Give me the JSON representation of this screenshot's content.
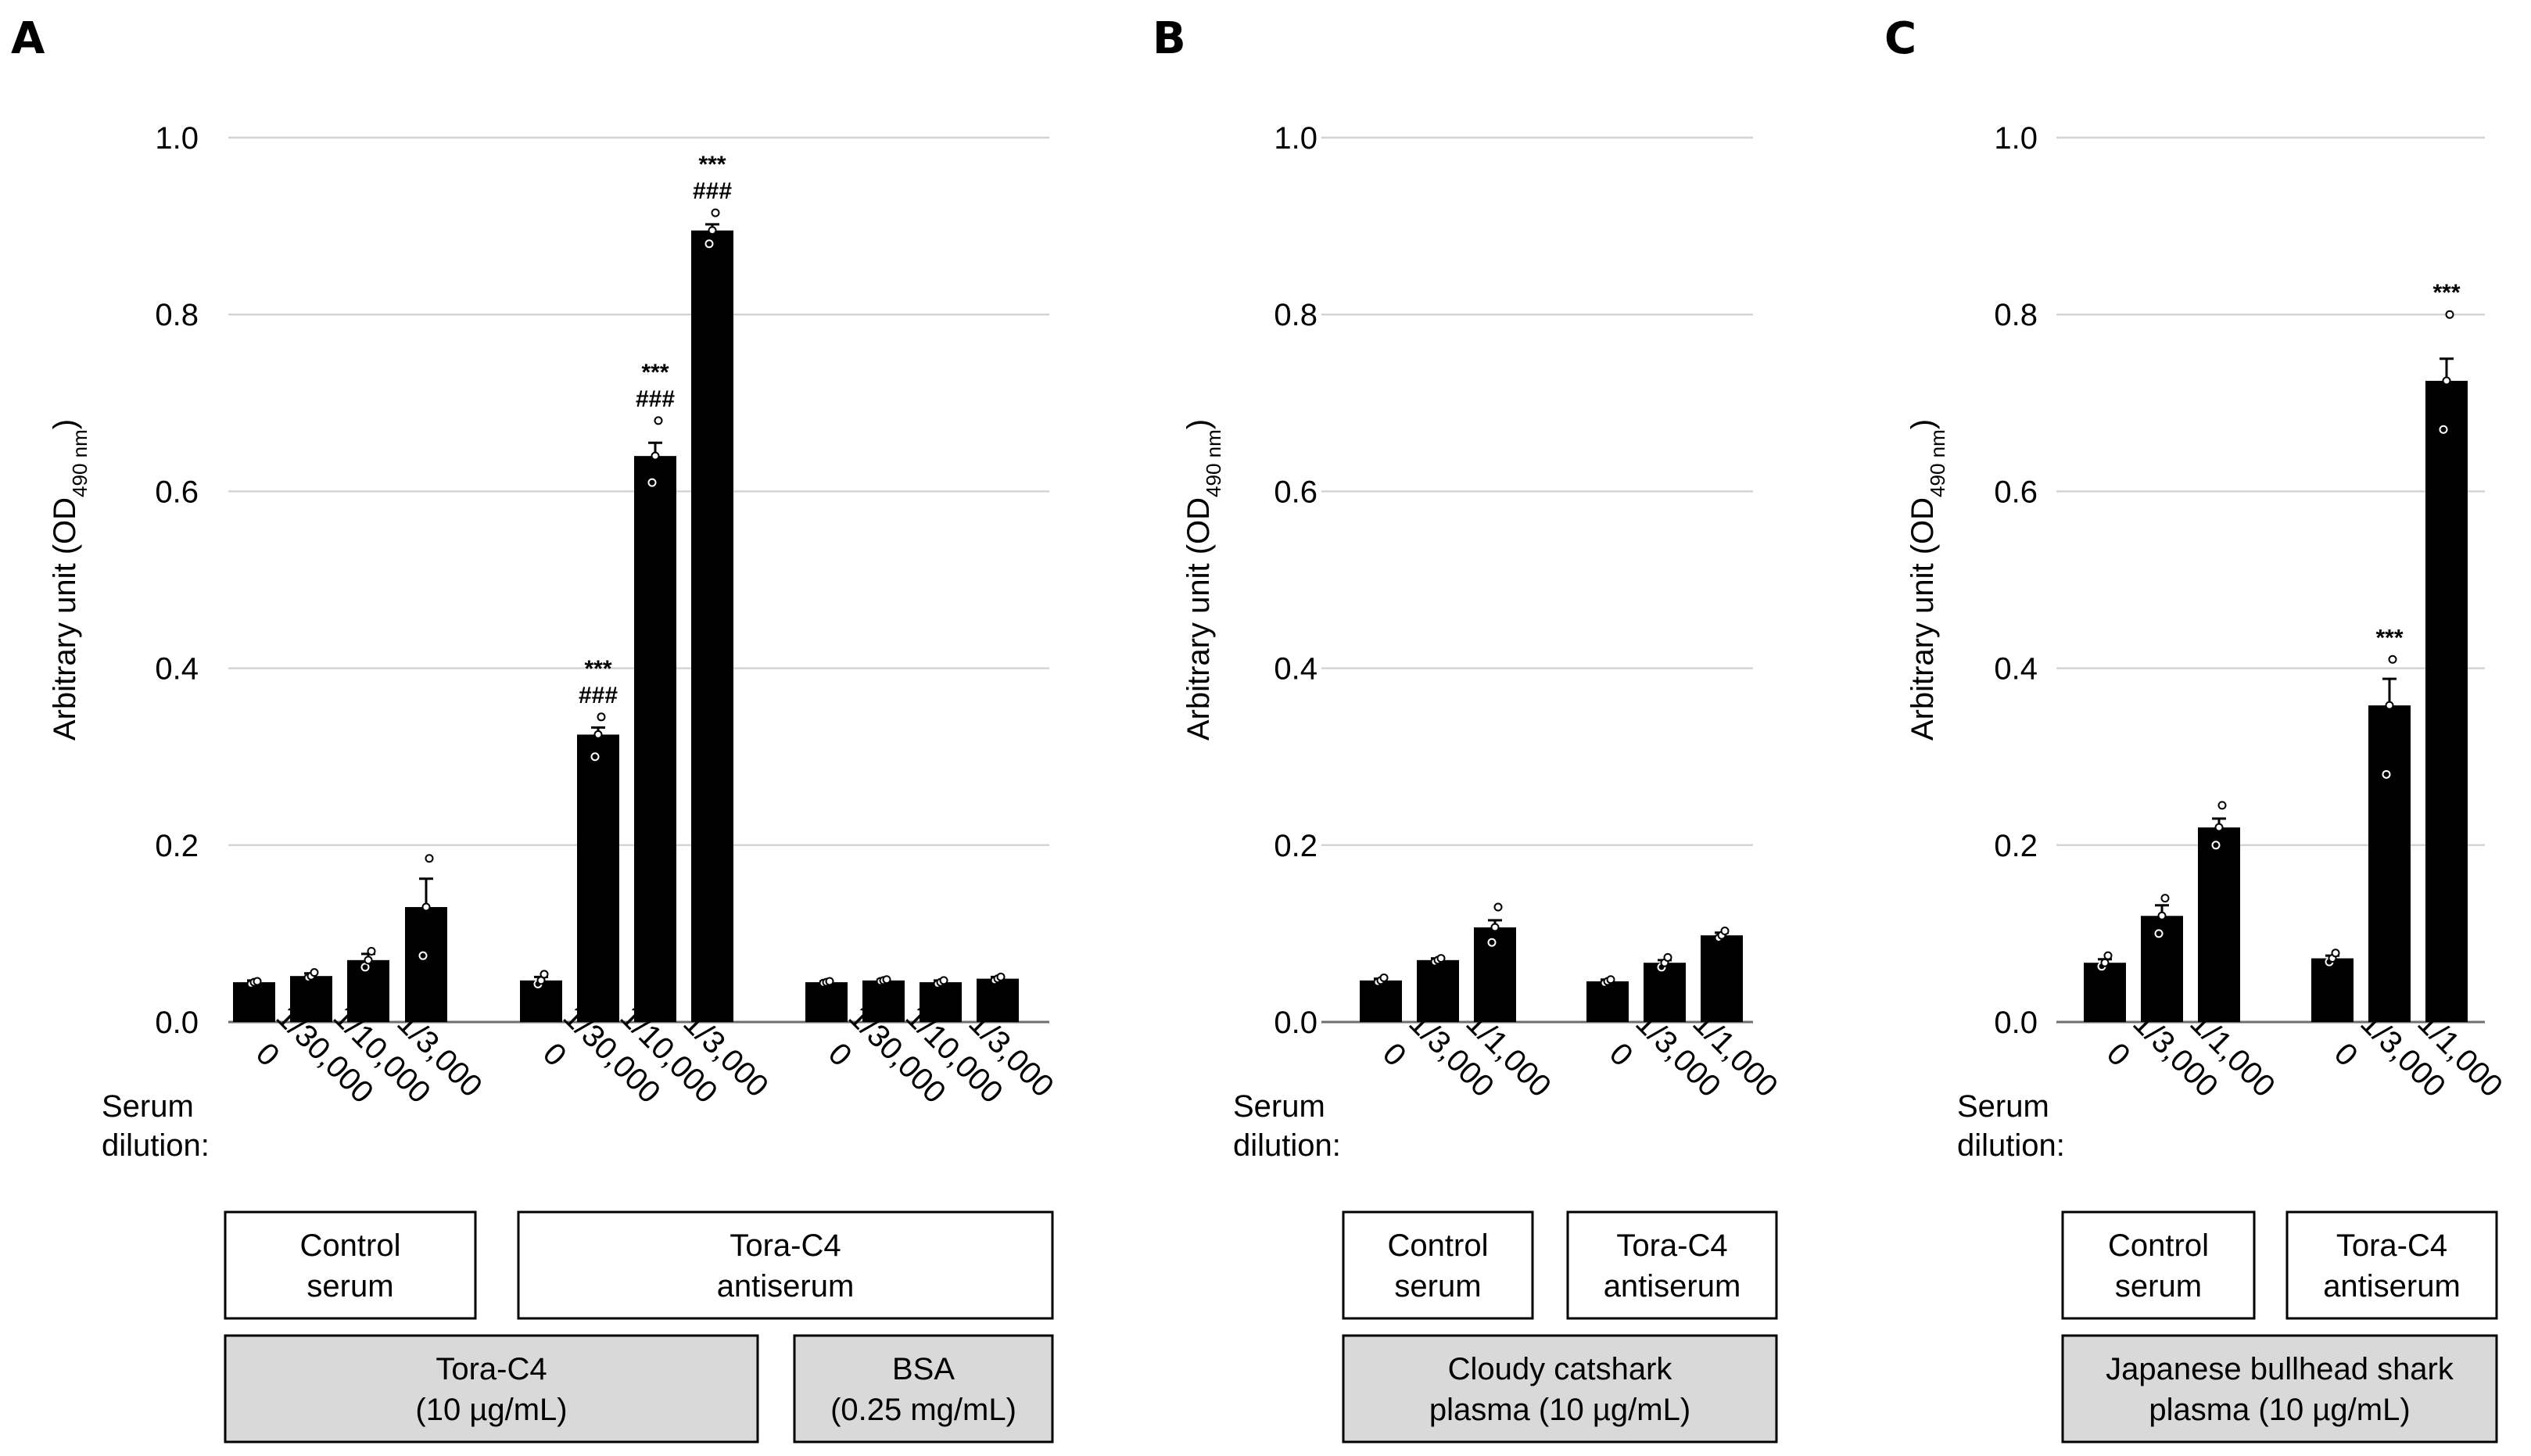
{
  "figure": {
    "serum_dilution_label": [
      "Serum",
      "dilution:"
    ]
  },
  "chart_data": [
    {
      "panel": "A",
      "type": "bar",
      "ylabel": "Arbitrary unit (OD490 nm)",
      "ylabel_main": "Arbitrary unit (OD",
      "ylabel_sub": "490 nm",
      "ylabel_close": ")",
      "ylim": [
        0,
        1.0
      ],
      "yticks": [
        "0.0",
        "0.2",
        "0.4",
        "0.6",
        "0.8",
        "1.0"
      ],
      "grid": true,
      "groups": [
        {
          "serum": "Control serum",
          "antigen": "Tora-C4 (10 µg/mL)",
          "categories": [
            "0",
            "1/30,000",
            "1/10,000",
            "1/3,000"
          ],
          "values": [
            0.045,
            0.052,
            0.07,
            0.13
          ],
          "errors": [
            0.002,
            0.003,
            0.007,
            0.032
          ],
          "points": [
            [
              0.043,
              0.045,
              0.046
            ],
            [
              0.05,
              0.052,
              0.056
            ],
            [
              0.062,
              0.07,
              0.08
            ],
            [
              0.075,
              0.13,
              0.185
            ]
          ],
          "significance": [
            [],
            [],
            [],
            []
          ]
        },
        {
          "serum": "Tora-C4 antiserum",
          "antigen": "Tora-C4 (10 µg/mL)",
          "categories": [
            "0",
            "1/30,000",
            "1/10,000",
            "1/3,000"
          ],
          "values": [
            0.047,
            0.325,
            0.64,
            0.895
          ],
          "errors": [
            0.004,
            0.008,
            0.015,
            0.007
          ],
          "points": [
            [
              0.043,
              0.047,
              0.054
            ],
            [
              0.3,
              0.325,
              0.345
            ],
            [
              0.61,
              0.64,
              0.68
            ],
            [
              0.88,
              0.895,
              0.915
            ]
          ],
          "significance": [
            [],
            [
              "***",
              "###"
            ],
            [
              "***",
              "###"
            ],
            [
              "***",
              "###"
            ]
          ]
        },
        {
          "serum": "Tora-C4 antiserum",
          "antigen": "BSA (0.25 mg/mL)",
          "categories": [
            "0",
            "1/30,000",
            "1/10,000",
            "1/3,000"
          ],
          "values": [
            0.045,
            0.047,
            0.045,
            0.049
          ],
          "errors": [
            0.001,
            0.001,
            0.002,
            0.002
          ],
          "points": [
            [
              0.044,
              0.045,
              0.046
            ],
            [
              0.046,
              0.047,
              0.048
            ],
            [
              0.043,
              0.045,
              0.047
            ],
            [
              0.047,
              0.049,
              0.051
            ]
          ],
          "significance": [
            [],
            [],
            [],
            []
          ]
        }
      ],
      "serum_boxes": [
        {
          "lines": [
            "Control",
            "serum"
          ],
          "groups": [
            0,
            0
          ]
        },
        {
          "lines": [
            "Tora-C4",
            "antiserum"
          ],
          "groups": [
            1,
            2
          ]
        }
      ],
      "antigen_boxes": [
        {
          "lines": [
            "Tora-C4",
            "(10 µg/mL)"
          ],
          "groups": [
            0,
            1
          ]
        },
        {
          "lines": [
            "BSA",
            "(0.25 mg/mL)"
          ],
          "groups": [
            2,
            2
          ]
        }
      ]
    },
    {
      "panel": "B",
      "type": "bar",
      "ylabel": "Arbitrary unit (OD490 nm)",
      "ylabel_main": "Arbitrary unit (OD",
      "ylabel_sub": "490 nm",
      "ylabel_close": ")",
      "ylim": [
        0,
        1.0
      ],
      "yticks": [
        "0.0",
        "0.2",
        "0.4",
        "0.6",
        "0.8",
        "1.0"
      ],
      "grid": true,
      "groups": [
        {
          "serum": "Control serum",
          "categories": [
            "0",
            "1/3,000",
            "1/1,000"
          ],
          "values": [
            0.047,
            0.07,
            0.107
          ],
          "errors": [
            0.002,
            0.002,
            0.008
          ],
          "points": [
            [
              0.045,
              0.047,
              0.05
            ],
            [
              0.068,
              0.07,
              0.072
            ],
            [
              0.09,
              0.107,
              0.13
            ]
          ],
          "significance": [
            [],
            [],
            []
          ]
        },
        {
          "serum": "Tora-C4 antiserum",
          "categories": [
            "0",
            "1/3,000",
            "1/1,000"
          ],
          "values": [
            0.046,
            0.067,
            0.098
          ],
          "errors": [
            0.002,
            0.003,
            0.003
          ],
          "points": [
            [
              0.044,
              0.046,
              0.048
            ],
            [
              0.062,
              0.067,
              0.073
            ],
            [
              0.095,
              0.098,
              0.103
            ]
          ],
          "significance": [
            [],
            [],
            []
          ]
        }
      ],
      "serum_boxes": [
        {
          "lines": [
            "Control",
            "serum"
          ],
          "groups": [
            0,
            0
          ]
        },
        {
          "lines": [
            "Tora-C4",
            "antiserum"
          ],
          "groups": [
            1,
            1
          ]
        }
      ],
      "antigen_boxes": [
        {
          "lines": [
            "Cloudy catshark",
            "plasma (10 µg/mL)"
          ],
          "groups": [
            0,
            1
          ]
        }
      ]
    },
    {
      "panel": "C",
      "type": "bar",
      "ylabel": "Arbitrary unit (OD490 nm)",
      "ylabel_main": "Arbitrary unit (OD",
      "ylabel_sub": "490 nm",
      "ylabel_close": ")",
      "ylim": [
        0,
        1.0
      ],
      "yticks": [
        "0.0",
        "0.2",
        "0.4",
        "0.6",
        "0.8",
        "1.0"
      ],
      "grid": true,
      "groups": [
        {
          "serum": "Control serum",
          "categories": [
            "0",
            "1/3,000",
            "1/1,000"
          ],
          "values": [
            0.067,
            0.12,
            0.22
          ],
          "errors": [
            0.004,
            0.012,
            0.01
          ],
          "points": [
            [
              0.063,
              0.067,
              0.075
            ],
            [
              0.1,
              0.12,
              0.14
            ],
            [
              0.2,
              0.22,
              0.245
            ]
          ],
          "significance": [
            [],
            [],
            []
          ]
        },
        {
          "serum": "Tora-C4 antiserum",
          "categories": [
            "0",
            "1/3,000",
            "1/1,000"
          ],
          "values": [
            0.072,
            0.358,
            0.725
          ],
          "errors": [
            0.003,
            0.03,
            0.025
          ],
          "points": [
            [
              0.068,
              0.072,
              0.078
            ],
            [
              0.28,
              0.358,
              0.41
            ],
            [
              0.67,
              0.725,
              0.8
            ]
          ],
          "significance": [
            [],
            [
              "***"
            ],
            [
              "***"
            ]
          ]
        }
      ],
      "serum_boxes": [
        {
          "lines": [
            "Control",
            "serum"
          ],
          "groups": [
            0,
            0
          ]
        },
        {
          "lines": [
            "Tora-C4",
            "antiserum"
          ],
          "groups": [
            1,
            1
          ]
        }
      ],
      "antigen_boxes": [
        {
          "lines": [
            "Japanese bullhead shark",
            "plasma (10 µg/mL)"
          ],
          "groups": [
            0,
            1
          ]
        }
      ]
    }
  ]
}
